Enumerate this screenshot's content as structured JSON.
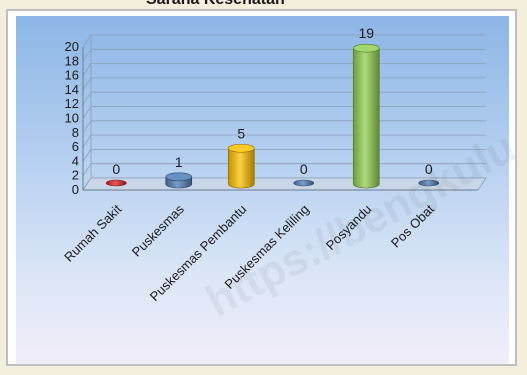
{
  "header": {
    "title": "Sarana Kesehatan"
  },
  "watermark": "https://bengkulu",
  "colors": {
    "red": "#e02020",
    "blue": "#4f7fb8",
    "gold": "#ffc000",
    "green": "#92d050"
  },
  "chart_data": {
    "type": "bar",
    "categories": [
      "Rumah Sakit",
      "Puskesmas",
      "Puskesmas Pembantu",
      "Puskesmas Keliling",
      "Posyandu",
      "Pos Obat"
    ],
    "values": [
      0,
      1,
      5,
      0,
      19,
      0
    ],
    "value_labels": [
      "0",
      "1",
      "5",
      "0",
      "19",
      "0"
    ],
    "bar_colors": [
      "red",
      "blue",
      "gold",
      "blue",
      "green",
      "blue"
    ],
    "ylim": [
      0,
      20
    ],
    "yticks": [
      "0",
      "2",
      "4",
      "6",
      "8",
      "10",
      "12",
      "14",
      "16",
      "18",
      "20"
    ],
    "grid": true,
    "title": "",
    "xlabel": "",
    "ylabel": ""
  }
}
